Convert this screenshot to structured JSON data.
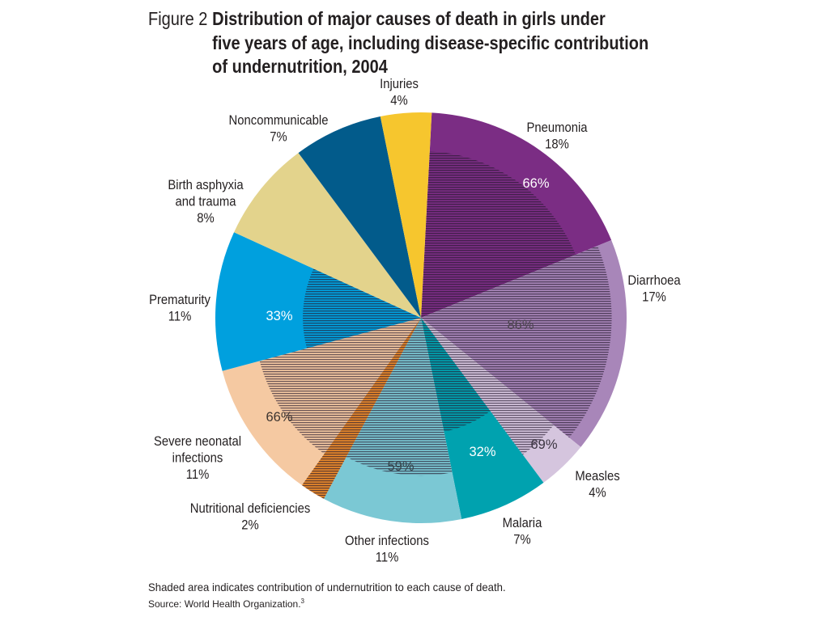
{
  "chart_data": {
    "type": "pie",
    "figure_label": "Figure 2",
    "title": [
      "Distribution of major causes of death in girls under",
      "five years of age, including disease-specific contribution",
      "of undernutrition, 2004"
    ],
    "unit": "%",
    "slices": [
      {
        "label": [
          "Pneumonia"
        ],
        "value": 18,
        "undernutrition": 66,
        "color": "#7b2d84"
      },
      {
        "label": [
          "Diarrhoea"
        ],
        "value": 17,
        "undernutrition": 86,
        "color": "#a886b9"
      },
      {
        "label": [
          "Measles"
        ],
        "value": 4,
        "undernutrition": 69,
        "color": "#d5c5de"
      },
      {
        "label": [
          "Malaria"
        ],
        "value": 7,
        "undernutrition": 32,
        "color": "#00a2af"
      },
      {
        "label": [
          "Other infections"
        ],
        "value": 11,
        "undernutrition": 59,
        "color": "#7bc8d4"
      },
      {
        "label": [
          "Nutritional deficiencies"
        ],
        "value": 2,
        "undernutrition": 100,
        "color": "#e8892b"
      },
      {
        "label": [
          "Severe neonatal",
          "infections"
        ],
        "value": 11,
        "undernutrition": 66,
        "color": "#f5c9a2"
      },
      {
        "label": [
          "Prematurity"
        ],
        "value": 11,
        "undernutrition": 33,
        "color": "#00a0de"
      },
      {
        "label": [
          "Birth asphyxia",
          "and trauma"
        ],
        "value": 8,
        "undernutrition": 0,
        "color": "#e3d38c"
      },
      {
        "label": [
          "Noncommunicable"
        ],
        "value": 7,
        "undernutrition": 0,
        "color": "#025b8b"
      },
      {
        "label": [
          "Injuries"
        ],
        "value": 4,
        "undernutrition": 0,
        "color": "#f6c62e"
      }
    ],
    "note": "Shaded area indicates contribution of undernutrition to each cause of death.",
    "source": "Source: World Health Organization.",
    "source_ref": "3"
  }
}
